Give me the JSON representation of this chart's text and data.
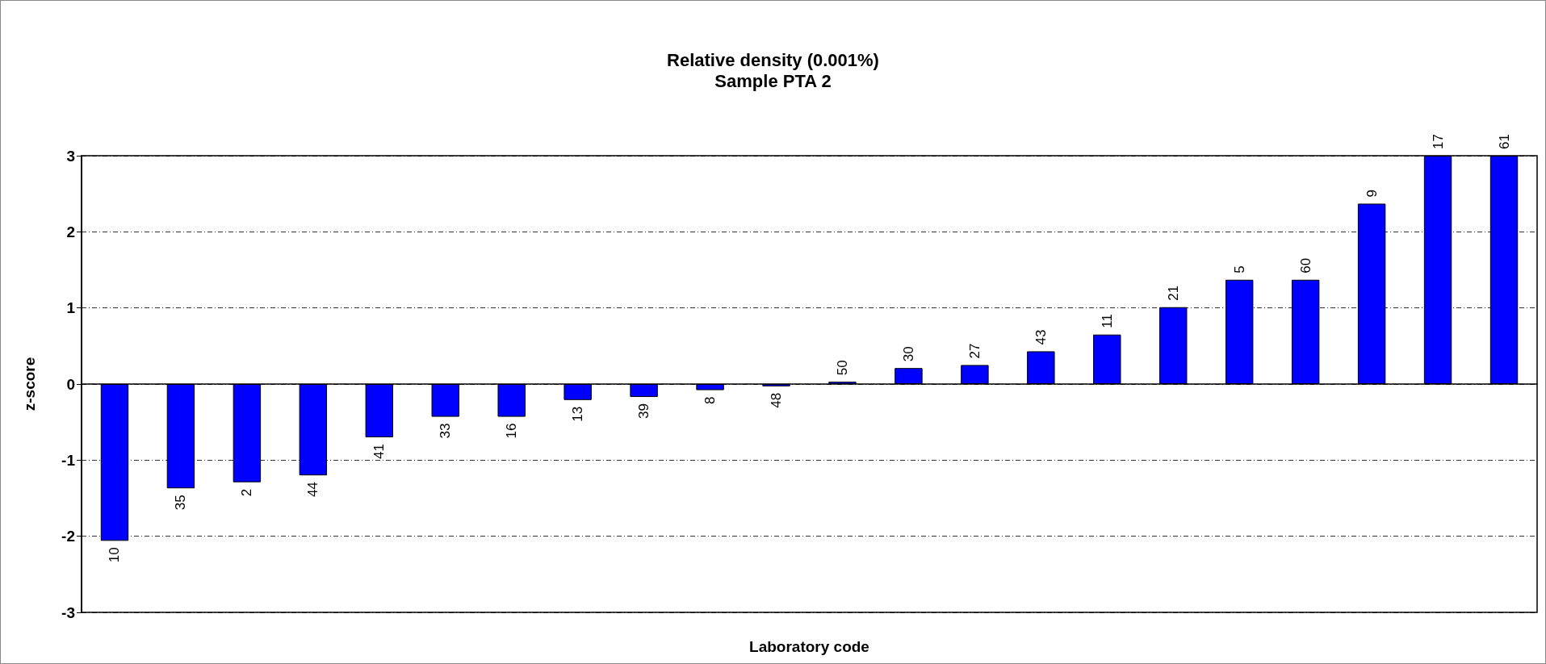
{
  "chart_data": {
    "type": "bar",
    "title": "Relative density (0.001%)",
    "subtitle": "Sample PTA 2",
    "xlabel": "Laboratory code",
    "ylabel": "z-score",
    "categories": [
      "10",
      "35",
      "2",
      "44",
      "41",
      "33",
      "16",
      "13",
      "39",
      "8",
      "48",
      "50",
      "30",
      "27",
      "43",
      "11",
      "21",
      "5",
      "60",
      "9",
      "17",
      "61"
    ],
    "series": [
      {
        "color": "#0000ff",
        "values": [
          -2.06,
          -1.37,
          -1.29,
          -1.2,
          -0.7,
          -0.43,
          -0.43,
          -0.21,
          -0.17,
          -0.08,
          -0.03,
          0.03,
          0.21,
          0.25,
          0.43,
          0.65,
          1.01,
          1.37,
          1.37,
          2.37,
          3,
          3
        ]
      }
    ],
    "ylim": [
      -3,
      3
    ],
    "yticks": [
      -3,
      -2,
      -1,
      0,
      1,
      2,
      3
    ],
    "grid": "y",
    "tick_labels": "y"
  }
}
